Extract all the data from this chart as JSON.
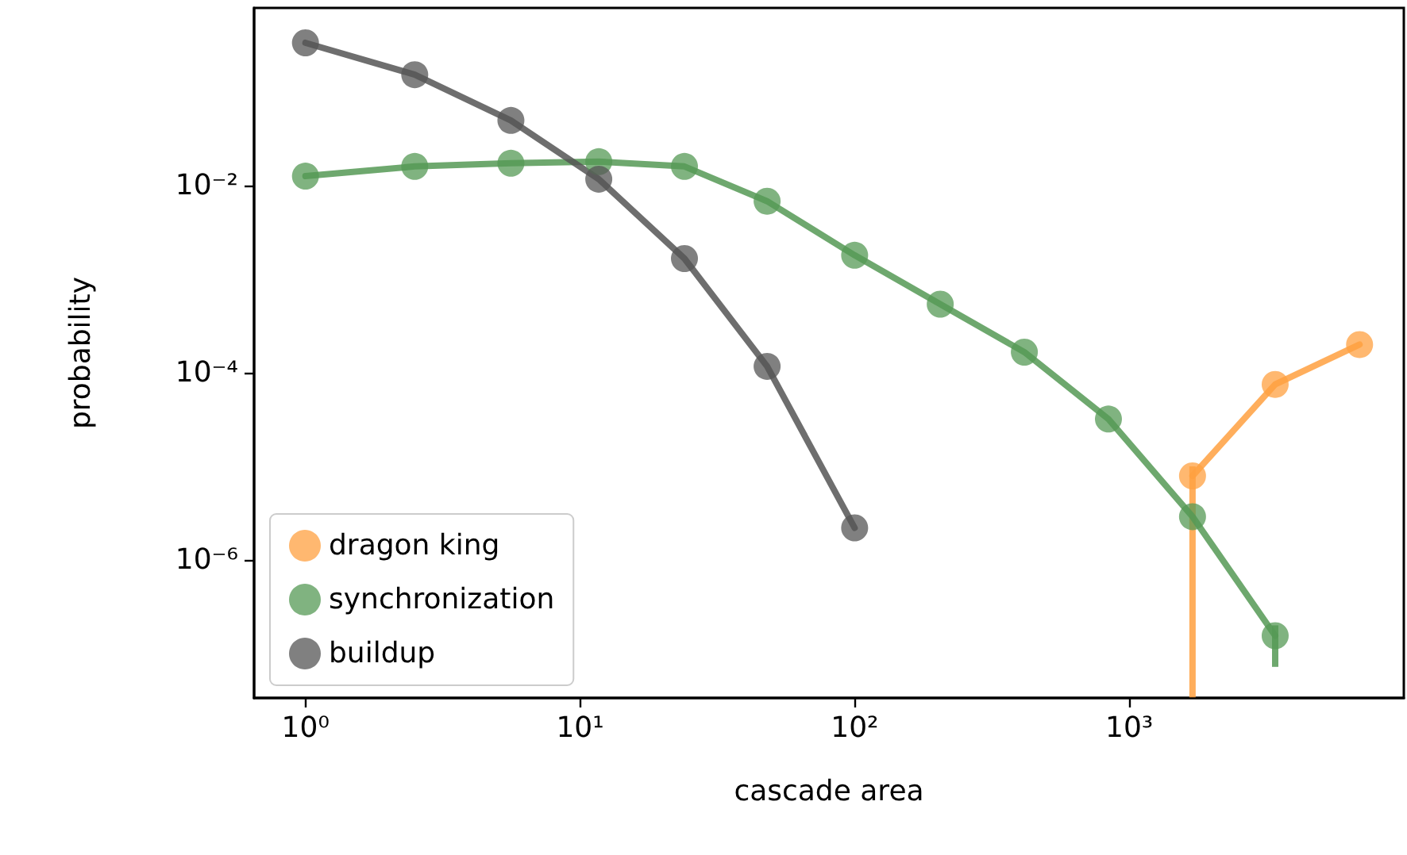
{
  "chart_data": {
    "type": "line",
    "xlabel": "cascade area",
    "ylabel": "probability",
    "log": "xy",
    "grid": false,
    "legend": "bottom left",
    "marker": "circle",
    "line_style": "solid",
    "xlim": [
      0.65,
      10000
    ],
    "ylim": [
      3.35e-08,
      0.79
    ],
    "xticks": [
      {
        "value": 1,
        "label": "10⁰"
      },
      {
        "value": 10,
        "label": "10¹"
      },
      {
        "value": 100,
        "label": "10²"
      },
      {
        "value": 1000,
        "label": "10³"
      }
    ],
    "yticks": [
      {
        "value": 0.01,
        "label": "10⁻²"
      },
      {
        "value": 0.0001,
        "label": "10⁻⁴"
      },
      {
        "value": 1e-06,
        "label": "10⁻⁶"
      }
    ],
    "series": [
      {
        "name": "dragon king",
        "color": "#ffa040",
        "x": [
          1700,
          3400,
          6900
        ],
        "values": [
          7.9e-06,
          7.5e-05,
          0.0002
        ],
        "errors": [
          [
            3.4e-08,
            1e-05
          ],
          null,
          null
        ]
      },
      {
        "name": "synchronization",
        "color": "#559955",
        "x": [
          1,
          2.5,
          5.6,
          11.7,
          24,
          48,
          100,
          205,
          415,
          840,
          1700,
          3400
        ],
        "values": [
          0.0126,
          0.016,
          0.0173,
          0.018,
          0.016,
          0.0068,
          0.0018,
          0.00054,
          0.000166,
          3.2e-05,
          2.9e-06,
          1.55e-07
        ],
        "errors": [
          null,
          null,
          null,
          null,
          null,
          null,
          null,
          null,
          null,
          null,
          null,
          [
            7.2e-08,
            2e-07
          ]
        ]
      },
      {
        "name": "buildup",
        "color": "#555555",
        "x": [
          1,
          2.5,
          5.6,
          11.7,
          24,
          48,
          100
        ],
        "values": [
          0.335,
          0.153,
          0.0496,
          0.0117,
          0.00166,
          0.000117,
          2.2e-06
        ]
      }
    ]
  }
}
